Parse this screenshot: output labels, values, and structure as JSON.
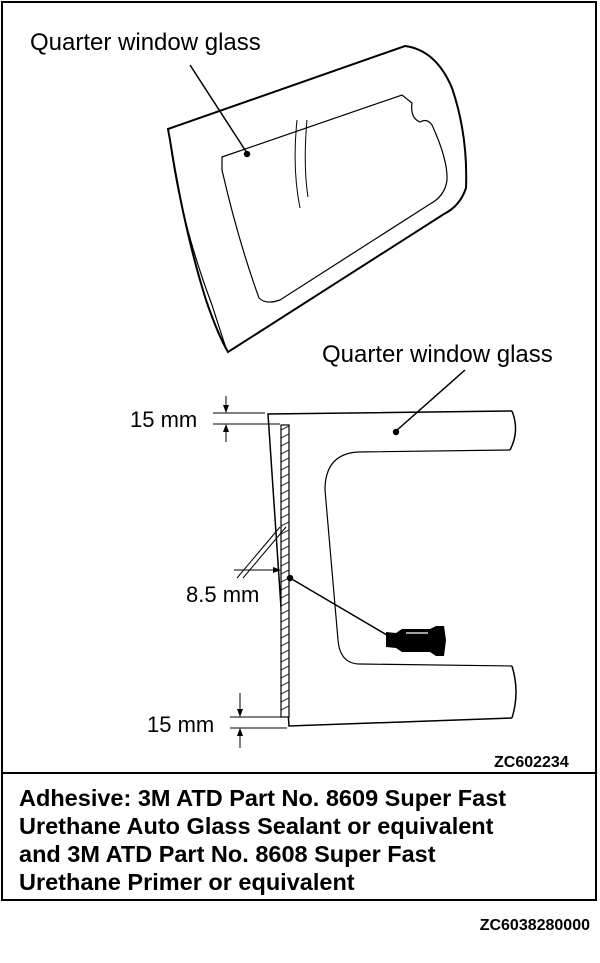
{
  "labels": {
    "top_glass": "Quarter window glass",
    "bottom_glass": "Quarter window glass",
    "dim_top": "15 mm",
    "dim_width": "8.5 mm",
    "dim_bottom": "15 mm",
    "figure_code": "ZC602234"
  },
  "caption": {
    "lines": [
      "Adhesive: 3M ATD Part No. 8609 Super Fast",
      "Urethane Auto Glass Sealant or equivalent",
      "and 3M ATD Part No. 8608 Super Fast",
      "Urethane Primer or equivalent"
    ]
  },
  "doc_code": "ZC6038280000",
  "icons": [
    "adhesive-tube-icon"
  ]
}
